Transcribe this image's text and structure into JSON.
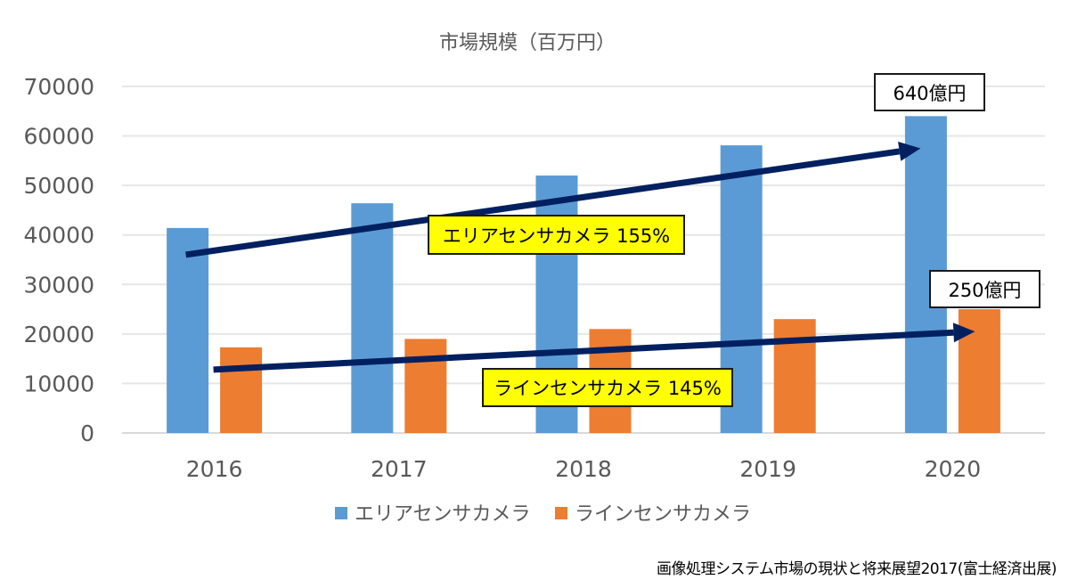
{
  "chart_data": {
    "type": "bar",
    "title": "市場規模（百万円）",
    "xlabel": "",
    "ylabel": "",
    "categories": [
      "2016",
      "2017",
      "2018",
      "2019",
      "2020"
    ],
    "series": [
      {
        "name": "エリアセンサカメラ",
        "color": "#5b9bd5",
        "values": [
          41400,
          46400,
          52000,
          58100,
          64000
        ]
      },
      {
        "name": "ラインセンサカメラ",
        "color": "#ed7d31",
        "values": [
          17300,
          19000,
          21000,
          23000,
          25000
        ]
      }
    ],
    "ylim": [
      0,
      70000
    ],
    "yticks": [
      "0",
      "10000",
      "20000",
      "30000",
      "40000",
      "50000",
      "60000",
      "70000"
    ],
    "grid": true,
    "legend_position": "bottom",
    "annotations": {
      "area_growth": "エリアセンサカメラ  155%",
      "line_growth": "ラインセンサカメラ  145%",
      "area_2020_label": "640億円",
      "line_2020_label": "250億円"
    },
    "trend_arrows": [
      {
        "series": "エリアセンサカメラ",
        "from": {
          "x": "2016",
          "y": 36000
        },
        "to": {
          "x": "2020",
          "y": 57500
        }
      },
      {
        "series": "ラインセンサカメラ",
        "from": {
          "x": "2016",
          "y": 12800
        },
        "to": {
          "x": "2020",
          "y": 20500
        }
      }
    ],
    "arrow_color": "#002060"
  },
  "source": "画像処理システム市場の現状と将来展望2017(富士経済出展)"
}
